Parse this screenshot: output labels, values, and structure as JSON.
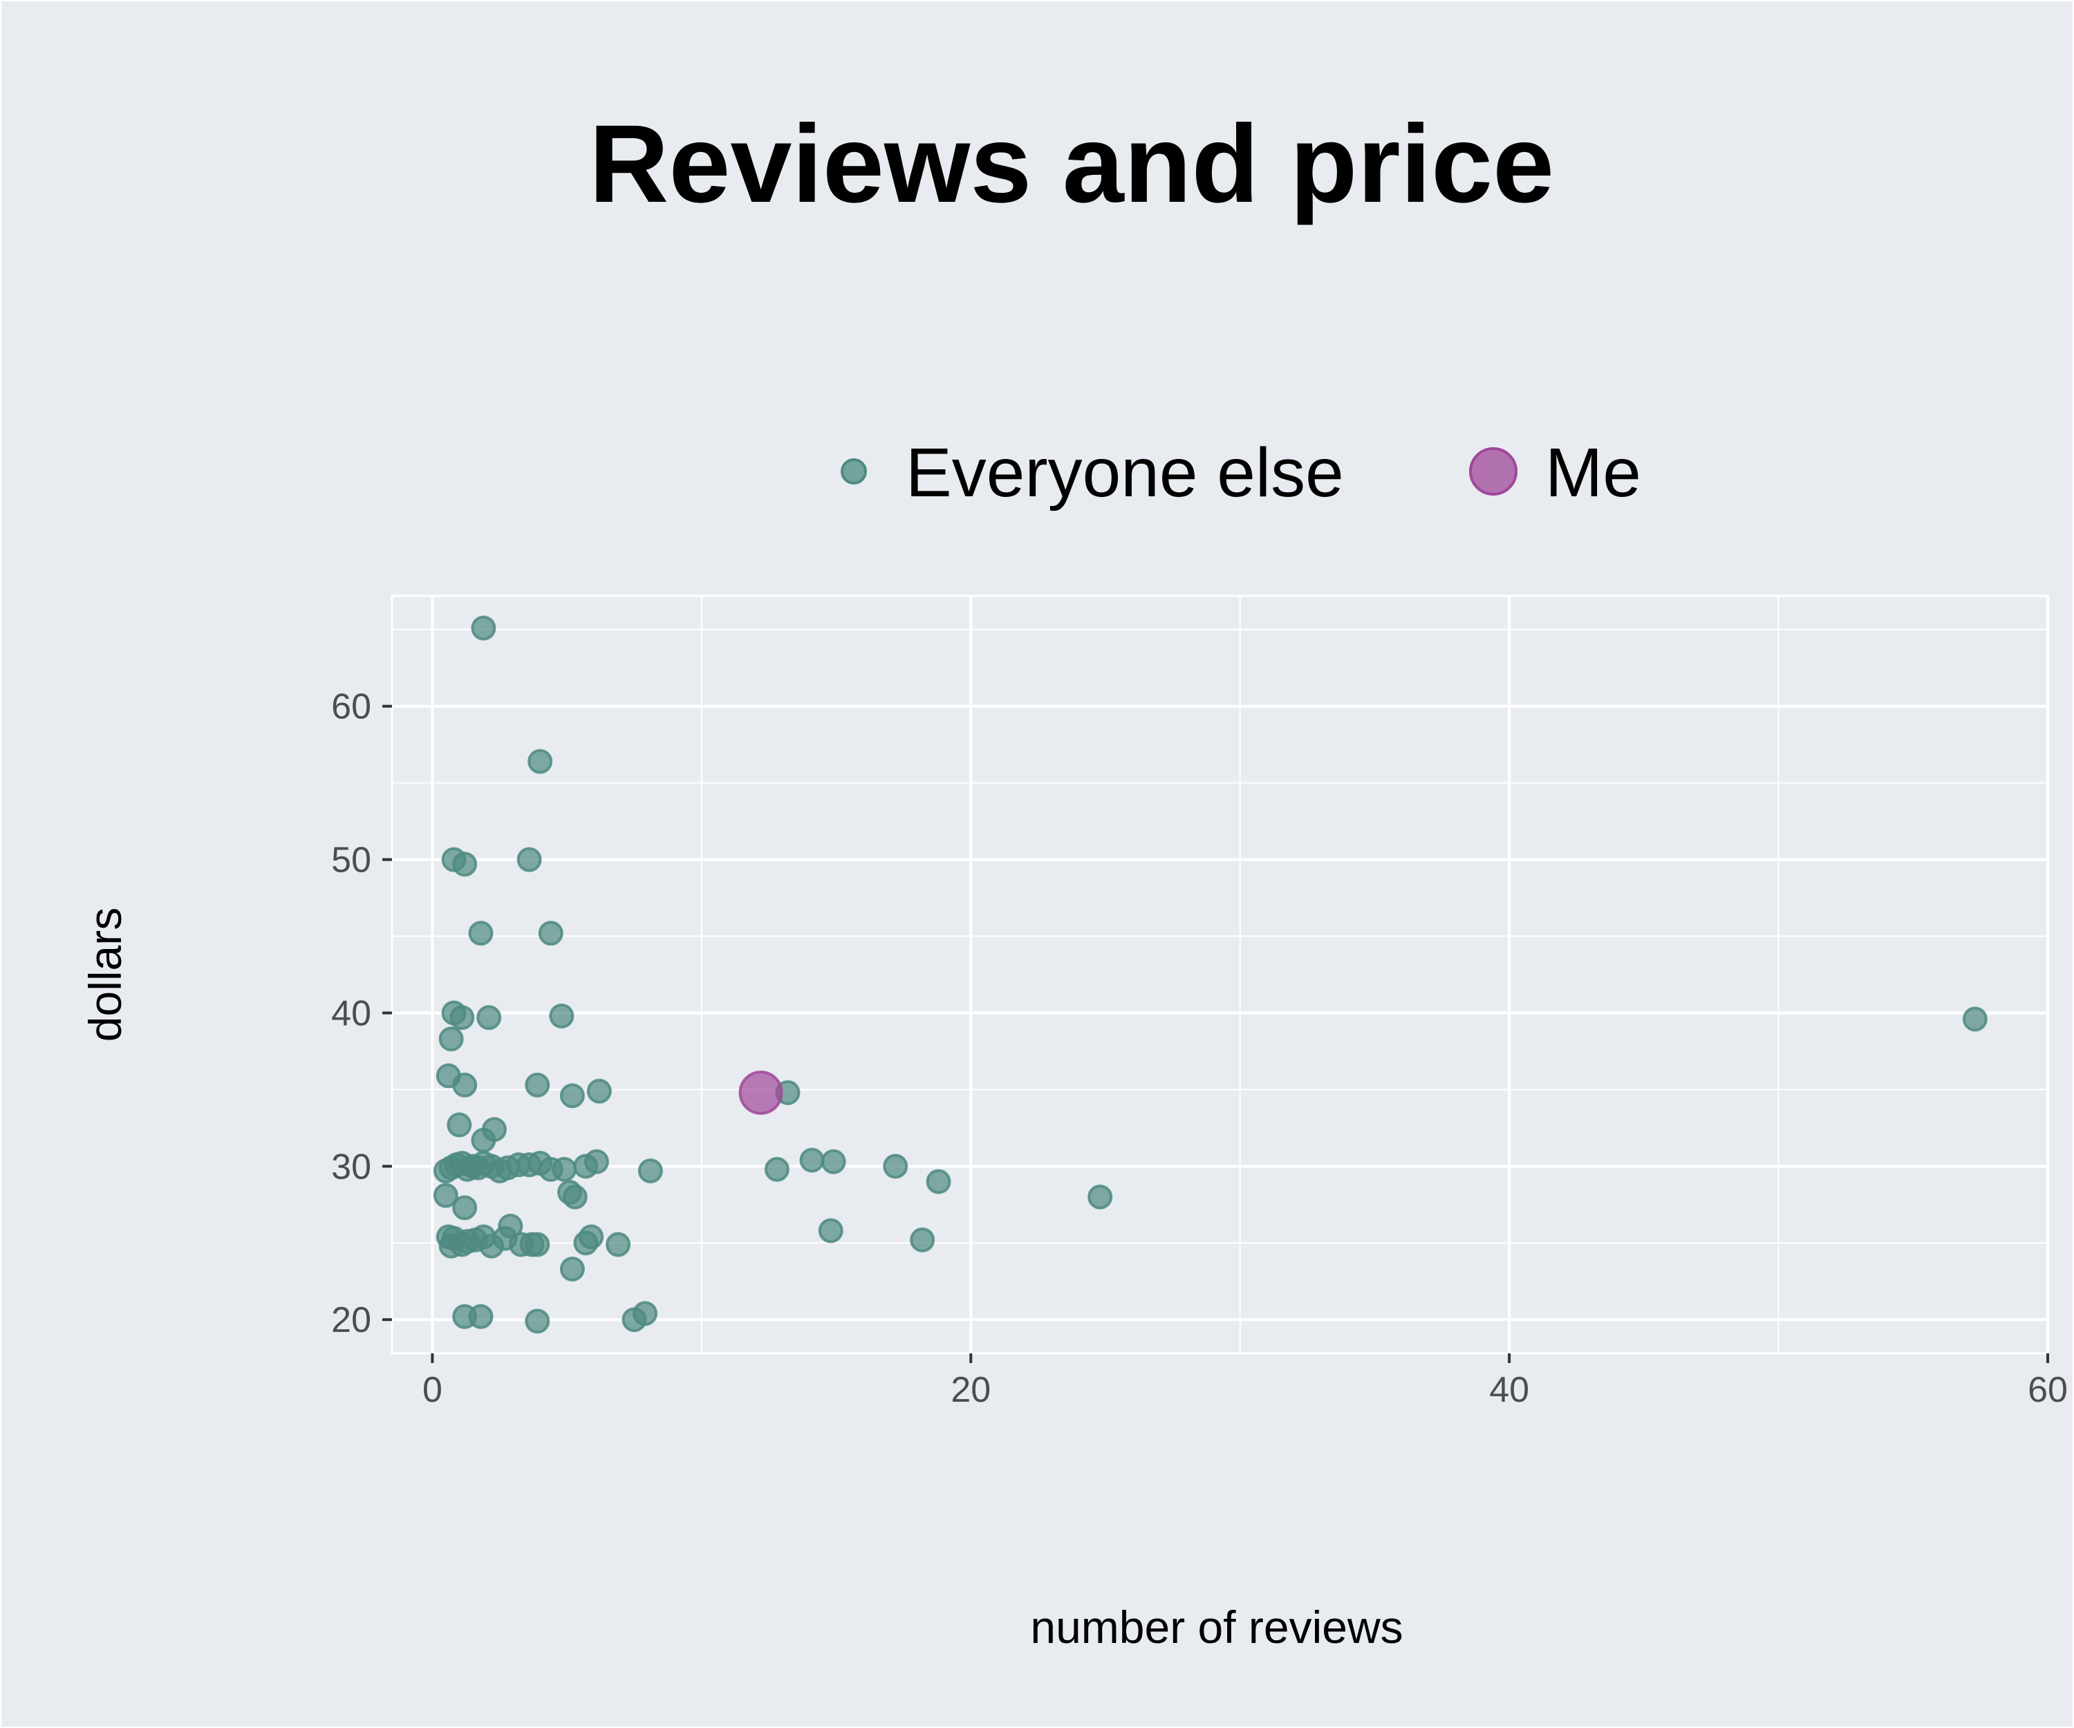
{
  "chart_data": {
    "type": "scatter",
    "title": "Reviews and price",
    "xlabel": "number of reviews",
    "ylabel": "dollars",
    "xlim": [
      -1.5,
      60
    ],
    "ylim": [
      17.8,
      67.2
    ],
    "x_ticks": [
      0,
      20,
      40,
      60
    ],
    "y_ticks": [
      20,
      30,
      40,
      50,
      60
    ],
    "grid": true,
    "legend_position": "top",
    "background_color": "#e8ecf0",
    "series": [
      {
        "name": "Everyone else",
        "color": "#4e8a80",
        "points": [
          [
            1.9,
            65.1
          ],
          [
            4.0,
            56.4
          ],
          [
            0.8,
            50.0
          ],
          [
            1.2,
            49.7
          ],
          [
            3.6,
            50.0
          ],
          [
            1.8,
            45.2
          ],
          [
            4.4,
            45.2
          ],
          [
            0.8,
            40.0
          ],
          [
            1.1,
            39.7
          ],
          [
            2.1,
            39.7
          ],
          [
            4.8,
            39.8
          ],
          [
            57.3,
            39.6
          ],
          [
            0.7,
            38.3
          ],
          [
            0.6,
            35.9
          ],
          [
            1.2,
            35.3
          ],
          [
            3.9,
            35.3
          ],
          [
            5.2,
            34.6
          ],
          [
            6.2,
            34.9
          ],
          [
            13.2,
            34.8
          ],
          [
            1.0,
            32.7
          ],
          [
            2.3,
            32.4
          ],
          [
            1.9,
            31.7
          ],
          [
            0.5,
            29.7
          ],
          [
            0.7,
            29.9
          ],
          [
            0.9,
            30.1
          ],
          [
            1.1,
            30.2
          ],
          [
            1.3,
            29.8
          ],
          [
            1.5,
            30.0
          ],
          [
            1.7,
            29.9
          ],
          [
            1.9,
            30.2
          ],
          [
            2.2,
            30.0
          ],
          [
            2.5,
            29.7
          ],
          [
            2.8,
            29.9
          ],
          [
            3.2,
            30.1
          ],
          [
            3.6,
            30.1
          ],
          [
            4.0,
            30.2
          ],
          [
            4.4,
            29.8
          ],
          [
            4.9,
            29.8
          ],
          [
            5.7,
            30.0
          ],
          [
            6.1,
            30.3
          ],
          [
            8.1,
            29.7
          ],
          [
            12.8,
            29.8
          ],
          [
            14.1,
            30.4
          ],
          [
            14.9,
            30.3
          ],
          [
            17.2,
            30.0
          ],
          [
            18.8,
            29.0
          ],
          [
            5.1,
            28.3
          ],
          [
            5.3,
            28.0
          ],
          [
            0.5,
            28.1
          ],
          [
            24.8,
            28.0
          ],
          [
            1.2,
            27.3
          ],
          [
            2.9,
            26.1
          ],
          [
            0.6,
            25.4
          ],
          [
            0.8,
            25.3
          ],
          [
            0.7,
            24.8
          ],
          [
            1.1,
            24.9
          ],
          [
            1.3,
            25.1
          ],
          [
            1.6,
            25.2
          ],
          [
            1.9,
            25.4
          ],
          [
            2.2,
            24.8
          ],
          [
            2.7,
            25.3
          ],
          [
            3.3,
            24.9
          ],
          [
            3.7,
            24.9
          ],
          [
            3.9,
            24.9
          ],
          [
            5.7,
            25.0
          ],
          [
            5.9,
            25.4
          ],
          [
            6.9,
            24.9
          ],
          [
            14.8,
            25.8
          ],
          [
            18.2,
            25.2
          ],
          [
            5.2,
            23.3
          ],
          [
            1.2,
            20.2
          ],
          [
            1.8,
            20.2
          ],
          [
            3.9,
            19.9
          ],
          [
            7.5,
            20.0
          ],
          [
            7.9,
            20.4
          ]
        ]
      },
      {
        "name": "Me",
        "color": "#a0489a",
        "points": [
          [
            12.2,
            34.8
          ]
        ]
      }
    ]
  }
}
